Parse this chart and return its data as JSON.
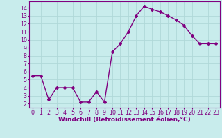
{
  "x": [
    0,
    1,
    2,
    3,
    4,
    5,
    6,
    7,
    8,
    9,
    10,
    11,
    12,
    13,
    14,
    15,
    16,
    17,
    18,
    19,
    20,
    21,
    22,
    23
  ],
  "y": [
    5.5,
    5.5,
    2.5,
    4.0,
    4.0,
    4.0,
    2.2,
    2.2,
    3.5,
    2.2,
    8.5,
    9.5,
    11.0,
    13.0,
    14.2,
    13.8,
    13.5,
    13.0,
    12.5,
    11.8,
    10.5,
    9.5,
    9.5,
    9.5
  ],
  "line_color": "#800080",
  "marker": "D",
  "marker_size": 2.0,
  "xlabel": "Windchill (Refroidissement éolien,°C)",
  "xlabel_fontsize": 6.5,
  "ylabel_ticks": [
    2,
    3,
    4,
    5,
    6,
    7,
    8,
    9,
    10,
    11,
    12,
    13,
    14
  ],
  "xlim": [
    -0.5,
    23.5
  ],
  "ylim": [
    1.5,
    14.8
  ],
  "background_color": "#c8ecec",
  "grid_color": "#b0d8d8",
  "tick_fontsize": 5.8,
  "linewidth": 1.0
}
